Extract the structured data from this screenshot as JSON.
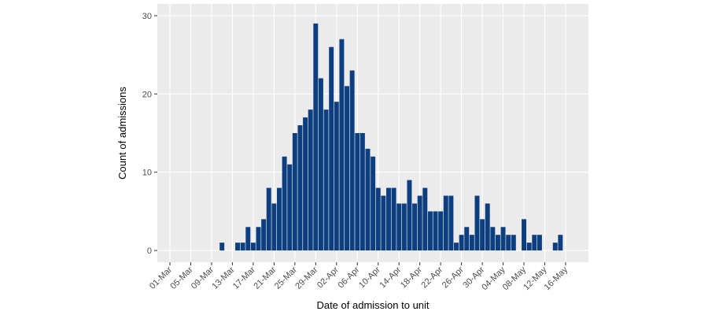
{
  "chart_data": {
    "type": "bar",
    "x_label": "Date of admission to unit",
    "y_label": "Count of admissions",
    "categories": [
      "01-Mar",
      null,
      null,
      null,
      "05-Mar",
      null,
      null,
      null,
      "09-Mar",
      null,
      null,
      null,
      "13-Mar",
      null,
      null,
      null,
      "17-Mar",
      null,
      null,
      null,
      "21-Mar",
      null,
      null,
      null,
      "25-Mar",
      null,
      null,
      null,
      "29-Mar",
      null,
      null,
      null,
      "02-Apr",
      null,
      null,
      null,
      "06-Apr",
      null,
      null,
      null,
      "10-Apr",
      null,
      null,
      null,
      "14-Apr",
      null,
      null,
      null,
      "18-Apr",
      null,
      null,
      null,
      "22-Apr",
      null,
      null,
      null,
      "26-Apr",
      null,
      null,
      null,
      "30-Apr",
      null,
      null,
      null,
      "04-May",
      null,
      null,
      null,
      "08-May",
      null,
      null,
      null,
      "12-May",
      null,
      null,
      null,
      "16-May"
    ],
    "values": [
      0,
      0,
      0,
      0,
      0,
      0,
      0,
      0,
      0,
      0,
      1,
      0,
      0,
      1,
      1,
      3,
      1,
      3,
      4,
      8,
      6,
      8,
      12,
      11,
      15,
      16,
      17,
      18,
      29,
      22,
      18,
      26,
      19,
      27,
      21,
      23,
      15,
      15,
      13,
      12,
      8,
      7,
      8,
      8,
      6,
      6,
      9,
      6,
      7,
      8,
      5,
      5,
      5,
      7,
      7,
      1,
      2,
      3,
      2,
      7,
      4,
      6,
      3,
      2,
      3,
      2,
      2,
      0,
      4,
      1,
      2,
      2,
      0,
      0,
      1,
      2,
      0
    ],
    "color": "#0d3f80",
    "ylim": [
      -1.5,
      31.5
    ],
    "yticks": [
      0,
      10,
      20,
      30
    ],
    "grid": true
  }
}
